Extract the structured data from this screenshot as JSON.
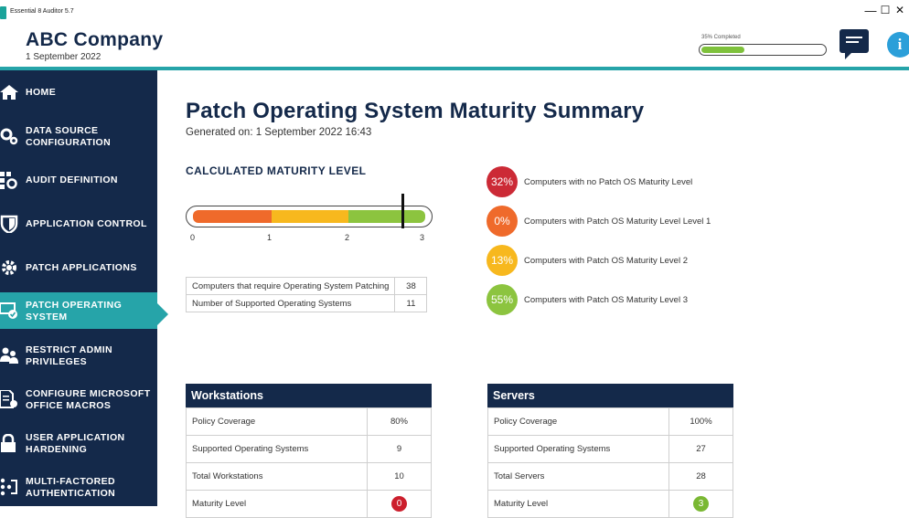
{
  "window": {
    "title": "Essential 8 Auditor 5.7",
    "minimize": "—",
    "maximize": "☐",
    "close": "✕"
  },
  "header": {
    "company": "ABC Company",
    "date": "1 September 2022",
    "progress_label": "35% Completed",
    "progress": 0.35,
    "info_glyph": "i"
  },
  "sidebar": {
    "items": [
      {
        "label": "HOME",
        "icon": "home-icon"
      },
      {
        "label": "DATA SOURCE CONFIGURATION",
        "icon": "gears-icon"
      },
      {
        "label": "AUDIT DEFINITION",
        "icon": "grid-gear-icon"
      },
      {
        "label": "APPLICATION CONTROL",
        "icon": "shield-icon"
      },
      {
        "label": "PATCH APPLICATIONS",
        "icon": "gear-icon"
      },
      {
        "label": "PATCH OPERATING SYSTEM",
        "icon": "monitor-check-icon",
        "active": true
      },
      {
        "label": "RESTRICT ADMIN PRIVILEGES",
        "icon": "users-icon"
      },
      {
        "label": "CONFIGURE MICROSOFT OFFICE MACROS",
        "icon": "document-gear-icon"
      },
      {
        "label": "USER APPLICATION HARDENING",
        "icon": "lock-icon"
      },
      {
        "label": "MULTI-FACTORED AUTHENTICATION",
        "icon": "keypad-icon"
      }
    ]
  },
  "main": {
    "title": "Patch Operating System Maturity Summary",
    "generated": "Generated on: 1 September 2022  16:43",
    "maturity_heading": "CALCULATED MATURITY LEVEL",
    "maturity_value": 2.7,
    "scale_ticks": [
      "0",
      "1",
      "2",
      "3"
    ],
    "segment_colors": [
      "#ef6a2b",
      "#f7b81e",
      "#8cc43f"
    ],
    "stats": [
      {
        "label": "Computers that require Operating System Patching",
        "value": "38"
      },
      {
        "label": "Number of Supported Operating Systems",
        "value": "11"
      }
    ],
    "legend": [
      {
        "pct": "32%",
        "label": "Computers with no Patch OS Maturity Level",
        "color": "#cc2a36"
      },
      {
        "pct": "0%",
        "label": "Computers with Patch OS Maturity Level Level 1",
        "color": "#ef6a2b"
      },
      {
        "pct": "13%",
        "label": "Computers with Patch OS Maturity Level 2",
        "color": "#f7b81e"
      },
      {
        "pct": "55%",
        "label": "Computers with Patch OS Maturity Level 3",
        "color": "#8cc43f"
      }
    ],
    "workstations": {
      "title": "Workstations",
      "rows": [
        {
          "label": "Policy Coverage",
          "value": "80%"
        },
        {
          "label": "Supported Operating Systems",
          "value": "9"
        },
        {
          "label": "Total Workstations",
          "value": "10"
        },
        {
          "label": "Maturity Level",
          "value": "0",
          "color": "#cc1f2d"
        }
      ]
    },
    "servers": {
      "title": "Servers",
      "rows": [
        {
          "label": "Policy Coverage",
          "value": "100%"
        },
        {
          "label": "Supported Operating Systems",
          "value": "27"
        },
        {
          "label": "Total Servers",
          "value": "28"
        },
        {
          "label": "Maturity Level",
          "value": "3",
          "color": "#7ab833"
        }
      ]
    }
  }
}
